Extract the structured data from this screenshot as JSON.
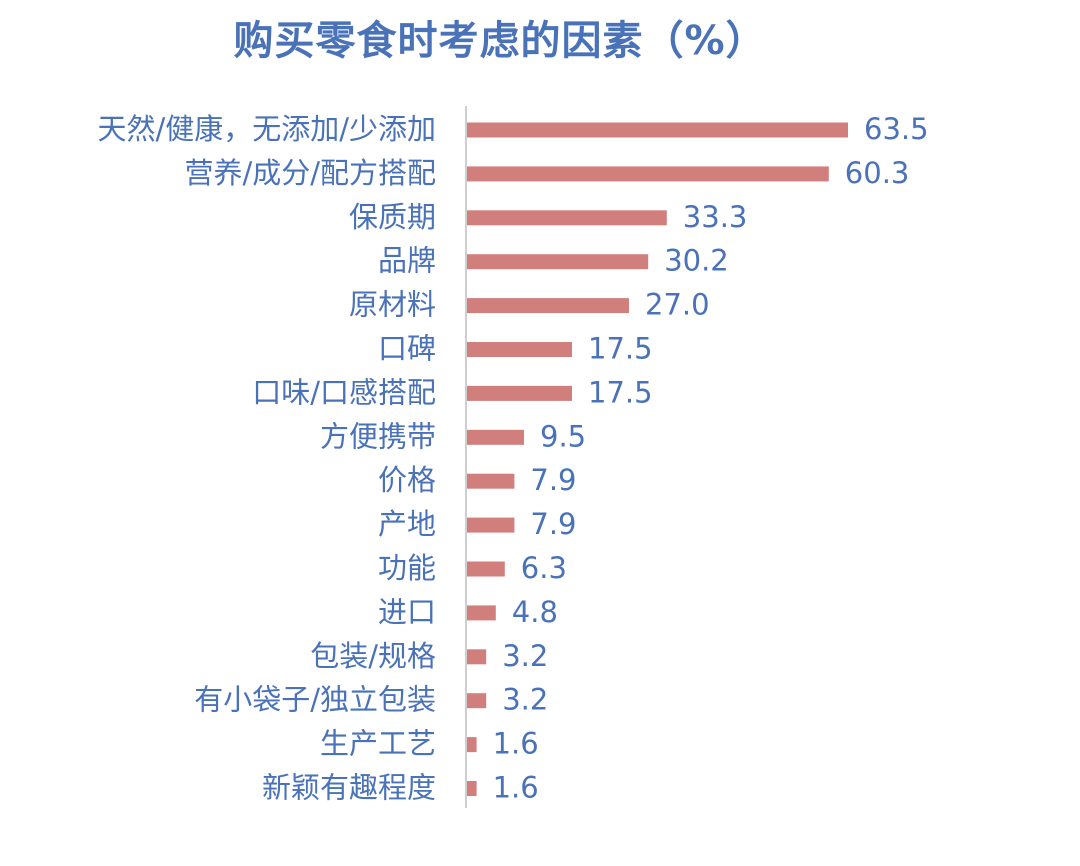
{
  "chart_data": {
    "type": "bar",
    "orientation": "horizontal",
    "title": "购买零食时考虑的因素（%）",
    "categories": [
      "天然/健康，无添加/少添加",
      "营养/成分/配方搭配",
      "保质期",
      "品牌",
      "原材料",
      "口碑",
      "口味/口感搭配",
      "方便携带",
      "价格",
      "产地",
      "功能",
      "进口",
      "包装/规格",
      "有小袋子/独立包装",
      "生产工艺",
      "新颖有趣程度"
    ],
    "values": [
      63.5,
      60.3,
      33.3,
      30.2,
      27.0,
      17.5,
      17.5,
      9.5,
      7.9,
      7.9,
      6.3,
      4.8,
      3.2,
      3.2,
      1.6,
      1.6
    ],
    "value_labels": [
      "63.5",
      "60.3",
      "33.3",
      "30.2",
      "27.0",
      "17.5",
      "17.5",
      "9.5",
      "7.9",
      "7.9",
      "6.3",
      "4.8",
      "3.2",
      "3.2",
      "1.6",
      "1.6"
    ],
    "bar_color": "#d17f7d",
    "text_color": "#4a72b8",
    "axis_color": "#bfbfbf",
    "grid": false,
    "legend": false
  }
}
